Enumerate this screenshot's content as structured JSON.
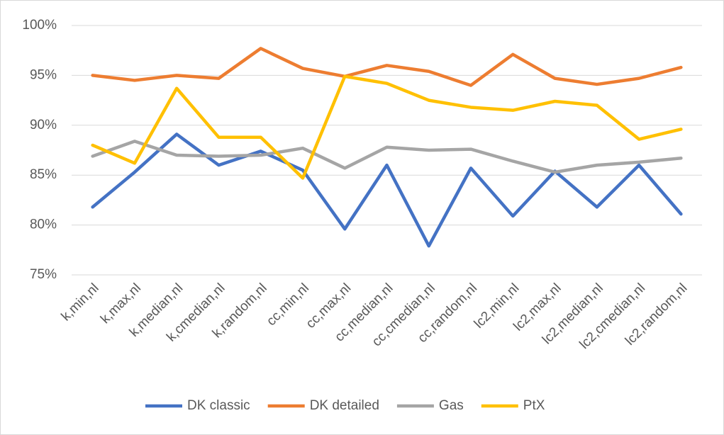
{
  "chart_data": {
    "type": "line",
    "categories": [
      "k,min,nl",
      "k,max,nl",
      "k,median,nl",
      "k,cmedian,nl",
      "k,random,nl",
      "cc,min,nl",
      "cc,max,nl",
      "cc,median,nl",
      "cc,cmedian,nl",
      "cc,random,nl",
      "lc2,min,nl",
      "lc2,max,nl",
      "lc2,median,nl",
      "lc2,cmedian,nl",
      "lc2,random,nl"
    ],
    "series": [
      {
        "name": "DK classic",
        "color": "#4472c4",
        "values": [
          81.8,
          85.3,
          89.1,
          86.0,
          87.4,
          85.5,
          79.6,
          86.0,
          77.9,
          85.7,
          80.9,
          85.4,
          81.8,
          86.0,
          81.1
        ]
      },
      {
        "name": "DK detailed",
        "color": "#ed7d31",
        "values": [
          95.0,
          94.5,
          95.0,
          94.7,
          97.7,
          95.7,
          94.9,
          96.0,
          95.4,
          94.0,
          97.1,
          94.7,
          94.1,
          94.7,
          95.8
        ]
      },
      {
        "name": "Gas",
        "color": "#a5a5a5",
        "values": [
          86.9,
          88.4,
          87.0,
          86.9,
          87.0,
          87.7,
          85.7,
          87.8,
          87.5,
          87.6,
          86.4,
          85.3,
          86.0,
          86.3,
          86.7
        ]
      },
      {
        "name": "PtX",
        "color": "#ffc000",
        "values": [
          88.0,
          86.2,
          93.7,
          88.8,
          88.8,
          84.7,
          94.9,
          94.2,
          92.5,
          91.8,
          91.5,
          92.4,
          92.0,
          88.6,
          89.6
        ]
      }
    ],
    "ylim": [
      75,
      100
    ],
    "yticks": [
      {
        "value": 75,
        "label": "75%"
      },
      {
        "value": 80,
        "label": "80%"
      },
      {
        "value": 85,
        "label": "85%"
      },
      {
        "value": 90,
        "label": "90%"
      },
      {
        "value": 95,
        "label": "95%"
      },
      {
        "value": 100,
        "label": "100%"
      }
    ],
    "grid": true,
    "legend": "bottom"
  }
}
